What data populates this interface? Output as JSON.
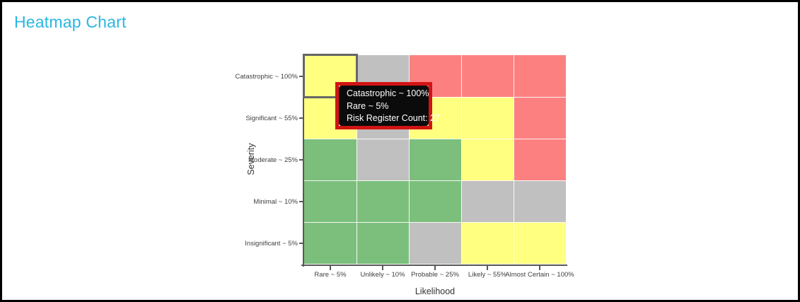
{
  "page": {
    "title": "Heatmap Chart",
    "title_color": "#2AB7E2",
    "background": "#FFFFFF",
    "border_color": "#000000"
  },
  "chart_data": {
    "type": "heatmap",
    "title": "Heatmap Chart",
    "xlabel": "Likelihood",
    "ylabel": "Severity",
    "x_categories": [
      "Rare ~ 5%",
      "Unlikely ~ 10%",
      "Probable ~ 25%",
      "Likely ~ 55%",
      "Almost Certain ~ 100%"
    ],
    "y_categories": [
      "Catastrophic ~ 100%",
      "Significant ~ 55%",
      "Moderate ~ 25%",
      "Minimal ~ 10%",
      "Insignificant ~ 5%"
    ],
    "rows": [
      {
        "label": "Catastrophic ~ 100%",
        "cells": [
          "yellow",
          "gray",
          "red",
          "red",
          "red"
        ]
      },
      {
        "label": "Significant ~ 55%",
        "cells": [
          "yellow",
          "gray",
          "yellow",
          "yellow",
          "red"
        ]
      },
      {
        "label": "Moderate ~ 25%",
        "cells": [
          "green",
          "gray",
          "green",
          "yellow",
          "red"
        ]
      },
      {
        "label": "Minimal ~ 10%",
        "cells": [
          "green",
          "green",
          "green",
          "gray",
          "gray"
        ]
      },
      {
        "label": "Insignificant ~ 5%",
        "cells": [
          "green",
          "green",
          "gray",
          "yellow",
          "yellow"
        ]
      }
    ],
    "palette": {
      "green": "#7CBF7C",
      "gray": "#C0C0C0",
      "yellow": "#FFFF80",
      "red": "#FD8080"
    },
    "selected_cell": {
      "row": 0,
      "col": 0,
      "row_label": "Catastrophic ~ 100%",
      "col_label": "Rare ~ 5%",
      "risk_register_count": 27,
      "stroke_color": "#666666"
    },
    "legend_position": "none",
    "grid_separator": "white"
  },
  "tooltip": {
    "lines": [
      "Catastrophic ~ 100%",
      "Rare ~ 5%",
      "Risk Register Count: 27"
    ],
    "background": "#0B0B0B",
    "text_color": "#FFFFFF",
    "highlight_border_color": "#D21414"
  }
}
